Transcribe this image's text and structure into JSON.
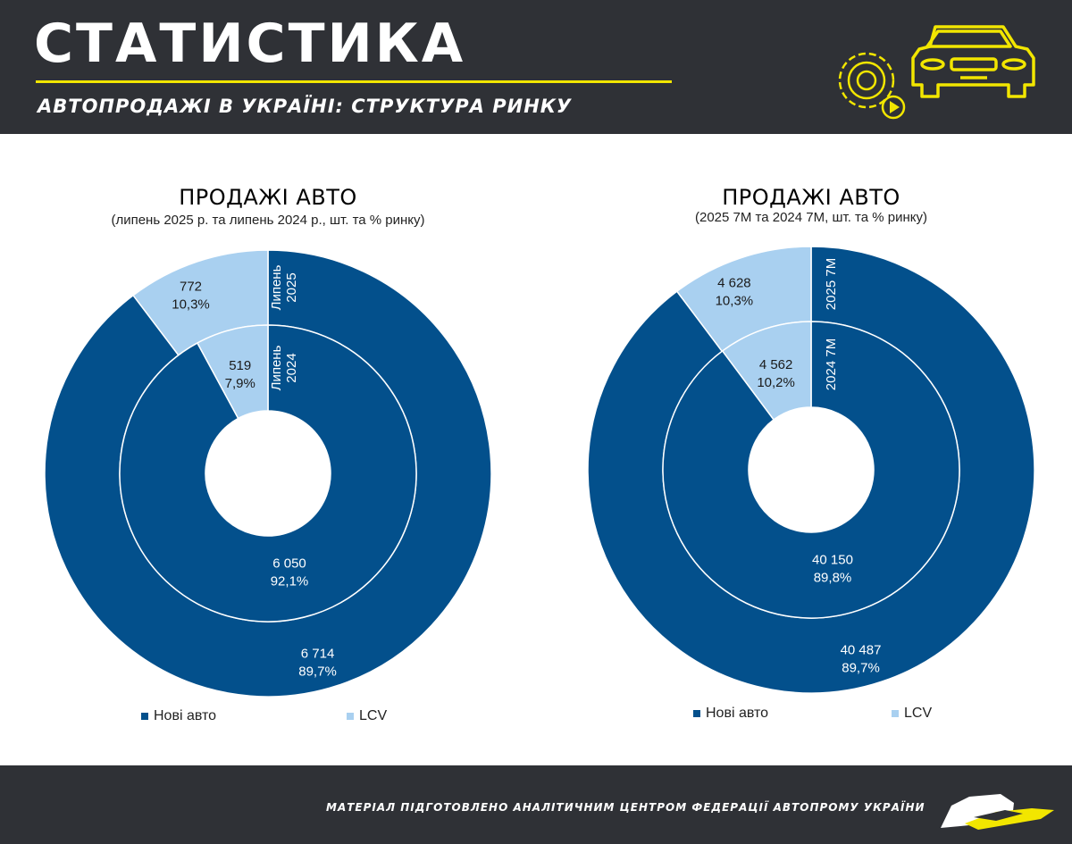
{
  "header": {
    "title": "СТАТИСТИКА",
    "subtitle": "АВТОПРОДАЖІ В УКРАЇНІ: СТРУКТУРА РИНКУ",
    "icons": [
      "gear-icon",
      "play-icon",
      "car-icon"
    ],
    "accent_color": "#f2e600"
  },
  "footer": {
    "text": "МАТЕРІАЛ ПІДГОТОВЛЕНО АНАЛІТИЧНИМ ЦЕНТРОМ ФЕДЕРАЦІЇ АВТОПРОМУ УКРАЇНИ"
  },
  "colors": {
    "new_cars": "#03508c",
    "lcv": "#a9d0f0"
  },
  "chart_data": [
    {
      "type": "donut",
      "title": "ПРОДАЖІ АВТО",
      "subtitle": "(липень 2025 р. та липень 2024 р., шт. та % ринку)",
      "categories": [
        "Нові авто",
        "LCV"
      ],
      "series": [
        {
          "name": "Липень 2025",
          "ring": "outer",
          "values": [
            6714,
            772
          ],
          "labels": [
            "6 714",
            "772"
          ],
          "percents": [
            "89,7%",
            "10,3%"
          ]
        },
        {
          "name": "Липень 2024",
          "ring": "inner",
          "values": [
            6050,
            519
          ],
          "labels": [
            "6 050",
            "519"
          ],
          "percents": [
            "92,1%",
            "7,9%"
          ]
        }
      ],
      "legend": [
        {
          "label": "Нові авто",
          "color": "#03508c"
        },
        {
          "label": "LCV",
          "color": "#a9d0f0"
        }
      ],
      "legend_position": "bottom"
    },
    {
      "type": "donut",
      "title": "ПРОДАЖІ АВТО",
      "subtitle": "(2025 7М та 2024 7М, шт. та % ринку)",
      "categories": [
        "Нові авто",
        "LCV"
      ],
      "series": [
        {
          "name": "2025 7М",
          "ring": "outer",
          "values": [
            40487,
            4628
          ],
          "labels": [
            "40 487",
            "4 628"
          ],
          "percents": [
            "89,7%",
            "10,3%"
          ]
        },
        {
          "name": "2024 7М",
          "ring": "inner",
          "values": [
            40150,
            4562
          ],
          "labels": [
            "40 150",
            "4 562"
          ],
          "percents": [
            "89,8%",
            "10,2%"
          ]
        }
      ],
      "legend": [
        {
          "label": "Нові авто",
          "color": "#03508c"
        },
        {
          "label": "LCV",
          "color": "#a9d0f0"
        }
      ],
      "legend_position": "bottom"
    }
  ]
}
